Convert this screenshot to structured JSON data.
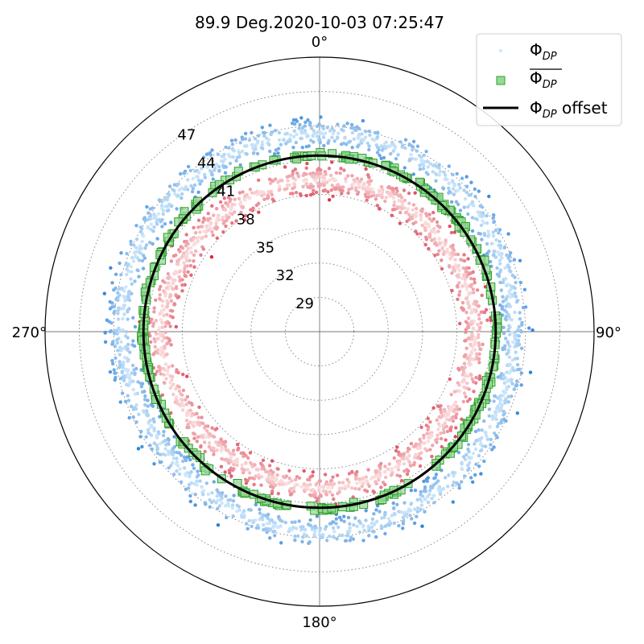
{
  "chart_data": {
    "type": "scatter",
    "projection": "polar",
    "title": "89.9 Deg.2020-10-03 07:25:47",
    "theta_zero": "north",
    "theta_direction": "clockwise",
    "theta_ticks": [
      "0°",
      "90°",
      "180°",
      "270°"
    ],
    "r_ticks": [
      "29",
      "32",
      "35",
      "38",
      "41",
      "44",
      "47"
    ],
    "rlim": [
      26,
      50
    ],
    "grid": "dotted",
    "legend_placement": "top-right",
    "legend": [
      {
        "symbol": "Φ",
        "sub": "DP",
        "suffix": "",
        "overline": false
      },
      {
        "symbol": "Φ",
        "sub": "DP",
        "suffix": "",
        "overline": true
      },
      {
        "symbol": "Φ",
        "sub": "DP",
        "suffix": " offset",
        "overline": false
      }
    ],
    "offset_circle_r": 41.4,
    "series": [
      {
        "style": "raw",
        "colormap": "blue",
        "theta_deg": [
          0,
          30,
          60,
          90,
          120,
          150,
          180,
          210,
          240,
          270,
          300,
          330
        ],
        "r": [
          43.3,
          43.4,
          43.2,
          42.9,
          43.1,
          43.4,
          43.6,
          43.2,
          43.0,
          43.3,
          43.5,
          43.3
        ]
      },
      {
        "style": "raw",
        "colormap": "red",
        "theta_deg": [
          0,
          30,
          60,
          90,
          120,
          150,
          180,
          210,
          240,
          270,
          300,
          330
        ],
        "r": [
          39.3,
          39.3,
          39.2,
          39.6,
          39.3,
          39.6,
          39.7,
          39.4,
          39.6,
          40.0,
          39.4,
          39.2
        ]
      },
      {
        "style": "mean",
        "color": "#2ca02c",
        "theta_deg": [
          0,
          30,
          60,
          90,
          120,
          150,
          180,
          210,
          240,
          270,
          300,
          330
        ],
        "r": [
          41.5,
          41.5,
          41.5,
          41.5,
          41.4,
          41.4,
          41.5,
          41.4,
          41.4,
          41.4,
          41.5,
          41.4
        ]
      }
    ],
    "colors": {
      "offset_line": "#000000",
      "mean_fill": "#98d898",
      "mean_edge": "#2ca02c",
      "raw_blue_light": "#cfe8fb",
      "raw_blue_dark": "#1f77d4",
      "raw_red_light": "#fbe0e0",
      "raw_red_dark": "#d6283f"
    }
  }
}
